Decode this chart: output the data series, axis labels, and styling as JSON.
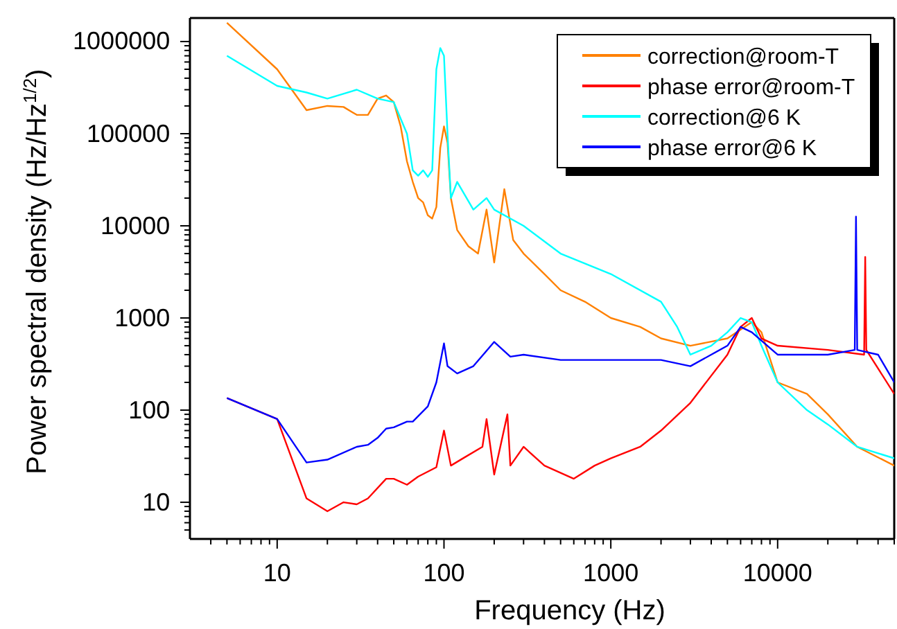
{
  "chart_data": {
    "type": "line",
    "xlabel": "Frequency (Hz)",
    "ylabel": "Power spectral density (Hz/Hz$^{1/2}$)",
    "log": "xy",
    "legend": "top right",
    "grid": false,
    "line_style": "solid",
    "marker": "none",
    "xlim": [
      3,
      50000
    ],
    "ylim": [
      4,
      1800000
    ],
    "xticks": [
      {
        "value": 4,
        "label": null
      },
      {
        "value": 5,
        "label": null
      },
      {
        "value": 6,
        "label": null
      },
      {
        "value": 7,
        "label": null
      },
      {
        "value": 8,
        "label": null
      },
      {
        "value": 9,
        "label": null
      },
      10,
      {
        "value": 20,
        "label": null
      },
      {
        "value": 30,
        "label": null
      },
      {
        "value": 40,
        "label": null
      },
      {
        "value": 50,
        "label": null
      },
      {
        "value": 60,
        "label": null
      },
      {
        "value": 70,
        "label": null
      },
      {
        "value": 80,
        "label": null
      },
      {
        "value": 90,
        "label": null
      },
      100,
      {
        "value": 200,
        "label": null
      },
      {
        "value": 300,
        "label": null
      },
      {
        "value": 400,
        "label": null
      },
      {
        "value": 500,
        "label": null
      },
      {
        "value": 600,
        "label": null
      },
      {
        "value": 700,
        "label": null
      },
      {
        "value": 800,
        "label": null
      },
      {
        "value": 900,
        "label": null
      },
      1000,
      {
        "value": 2000,
        "label": null
      },
      {
        "value": 3000,
        "label": null
      },
      {
        "value": 4000,
        "label": null
      },
      {
        "value": 5000,
        "label": null
      },
      {
        "value": 6000,
        "label": null
      },
      {
        "value": 7000,
        "label": null
      },
      {
        "value": 8000,
        "label": null
      },
      {
        "value": 9000,
        "label": null
      },
      10000,
      {
        "value": 20000,
        "label": null
      },
      {
        "value": 30000,
        "label": null
      },
      {
        "value": 40000,
        "label": null
      },
      {
        "value": 50000,
        "label": null
      }
    ],
    "yticks": [
      {
        "value": 5,
        "label": null
      },
      {
        "value": 6,
        "label": null
      },
      {
        "value": 7,
        "label": null
      },
      {
        "value": 8,
        "label": null
      },
      {
        "value": 9,
        "label": null
      },
      10,
      {
        "value": 20,
        "label": null
      },
      {
        "value": 30,
        "label": null
      },
      {
        "value": 40,
        "label": null
      },
      {
        "value": 50,
        "label": null
      },
      {
        "value": 60,
        "label": null
      },
      {
        "value": 70,
        "label": null
      },
      {
        "value": 80,
        "label": null
      },
      {
        "value": 90,
        "label": null
      },
      100,
      {
        "value": 200,
        "label": null
      },
      {
        "value": 300,
        "label": null
      },
      {
        "value": 400,
        "label": null
      },
      {
        "value": 500,
        "label": null
      },
      {
        "value": 600,
        "label": null
      },
      {
        "value": 700,
        "label": null
      },
      {
        "value": 800,
        "label": null
      },
      {
        "value": 900,
        "label": null
      },
      1000,
      {
        "value": 2000,
        "label": null
      },
      {
        "value": 3000,
        "label": null
      },
      {
        "value": 4000,
        "label": null
      },
      {
        "value": 5000,
        "label": null
      },
      {
        "value": 6000,
        "label": null
      },
      {
        "value": 7000,
        "label": null
      },
      {
        "value": 8000,
        "label": null
      },
      {
        "value": 9000,
        "label": null
      },
      10000,
      {
        "value": 20000,
        "label": null
      },
      {
        "value": 30000,
        "label": null
      },
      {
        "value": 40000,
        "label": null
      },
      {
        "value": 50000,
        "label": null
      },
      {
        "value": 60000,
        "label": null
      },
      {
        "value": 70000,
        "label": null
      },
      {
        "value": 80000,
        "label": null
      },
      {
        "value": 90000,
        "label": null
      },
      100000,
      {
        "value": 200000,
        "label": null
      },
      {
        "value": 300000,
        "label": null
      },
      {
        "value": 400000,
        "label": null
      },
      {
        "value": 500000,
        "label": null
      },
      {
        "value": 600000,
        "label": null
      },
      {
        "value": 700000,
        "label": null
      },
      {
        "value": 800000,
        "label": null
      },
      {
        "value": 900000,
        "label": null
      },
      1000000
    ],
    "series": [
      {
        "name": "correction@room-T",
        "color": "#ff8000",
        "x": [
          5,
          10,
          15,
          20,
          25,
          30,
          35,
          40,
          45,
          50,
          55,
          60,
          65,
          70,
          75,
          80,
          85,
          90,
          95,
          100,
          105,
          110,
          120,
          140,
          160,
          180,
          200,
          230,
          260,
          300,
          400,
          500,
          700,
          1000,
          1500,
          2000,
          3000,
          5000,
          7000,
          8000,
          10000,
          15000,
          20000,
          30000,
          50000
        ],
        "values": [
          1600000,
          500000,
          180000,
          200000,
          195000,
          160000,
          160000,
          240000,
          260000,
          220000,
          120000,
          50000,
          30000,
          20000,
          18000,
          13000,
          12000,
          16000,
          70000,
          120000,
          80000,
          20000,
          9000,
          6000,
          5000,
          15000,
          4000,
          25000,
          7000,
          5000,
          3000,
          2000,
          1500,
          1000,
          800,
          600,
          500,
          600,
          900,
          700,
          200,
          150,
          90,
          40,
          25
        ]
      },
      {
        "name": "phase error@room-T",
        "color": "#ff0000",
        "x": [
          5,
          10,
          15,
          20,
          25,
          30,
          35,
          45,
          50,
          60,
          70,
          90,
          100,
          110,
          130,
          170,
          180,
          200,
          240,
          250,
          300,
          400,
          600,
          800,
          1000,
          1500,
          2000,
          3000,
          5000,
          6000,
          7000,
          8000,
          10000,
          20000,
          33000,
          33500,
          34000,
          50000
        ],
        "values": [
          135,
          80,
          11,
          8,
          10,
          9.5,
          11,
          18,
          18,
          15.5,
          19,
          24,
          60,
          25,
          30,
          40,
          80,
          20,
          90,
          25,
          40,
          25,
          18,
          25,
          30,
          40,
          60,
          120,
          400,
          800,
          1000,
          600,
          500,
          450,
          400,
          4600,
          450,
          150
        ]
      },
      {
        "name": "correction@6 K",
        "color": "#00ffff",
        "x": [
          5,
          10,
          15,
          20,
          30,
          40,
          50,
          60,
          65,
          70,
          75,
          80,
          85,
          90,
          95,
          100,
          105,
          110,
          120,
          150,
          180,
          200,
          300,
          500,
          1000,
          2000,
          2500,
          3000,
          4000,
          5000,
          6000,
          7000,
          8000,
          10000,
          15000,
          20000,
          30000,
          50000
        ],
        "values": [
          700000,
          330000,
          280000,
          240000,
          300000,
          240000,
          220000,
          100000,
          40000,
          35000,
          40000,
          34000,
          40000,
          500000,
          850000,
          700000,
          100000,
          20000,
          30000,
          15000,
          20000,
          15000,
          10000,
          5000,
          3000,
          1500,
          800,
          400,
          500,
          700,
          1000,
          900,
          500,
          200,
          100,
          70,
          40,
          30
        ]
      },
      {
        "name": "phase error@6 K",
        "color": "#0000ff",
        "x": [
          5,
          10,
          15,
          20,
          30,
          35,
          40,
          45,
          50,
          60,
          65,
          80,
          90,
          100,
          105,
          120,
          150,
          200,
          250,
          300,
          500,
          1000,
          2000,
          3000,
          5000,
          6000,
          7000,
          10000,
          20000,
          29000,
          29500,
          30000,
          40000,
          50000
        ],
        "values": [
          135,
          80,
          27,
          29,
          40,
          42,
          50,
          63,
          65,
          75,
          75,
          110,
          200,
          530,
          300,
          250,
          300,
          550,
          380,
          400,
          350,
          350,
          350,
          300,
          500,
          800,
          700,
          400,
          400,
          450,
          12600,
          450,
          400,
          200
        ]
      }
    ]
  }
}
